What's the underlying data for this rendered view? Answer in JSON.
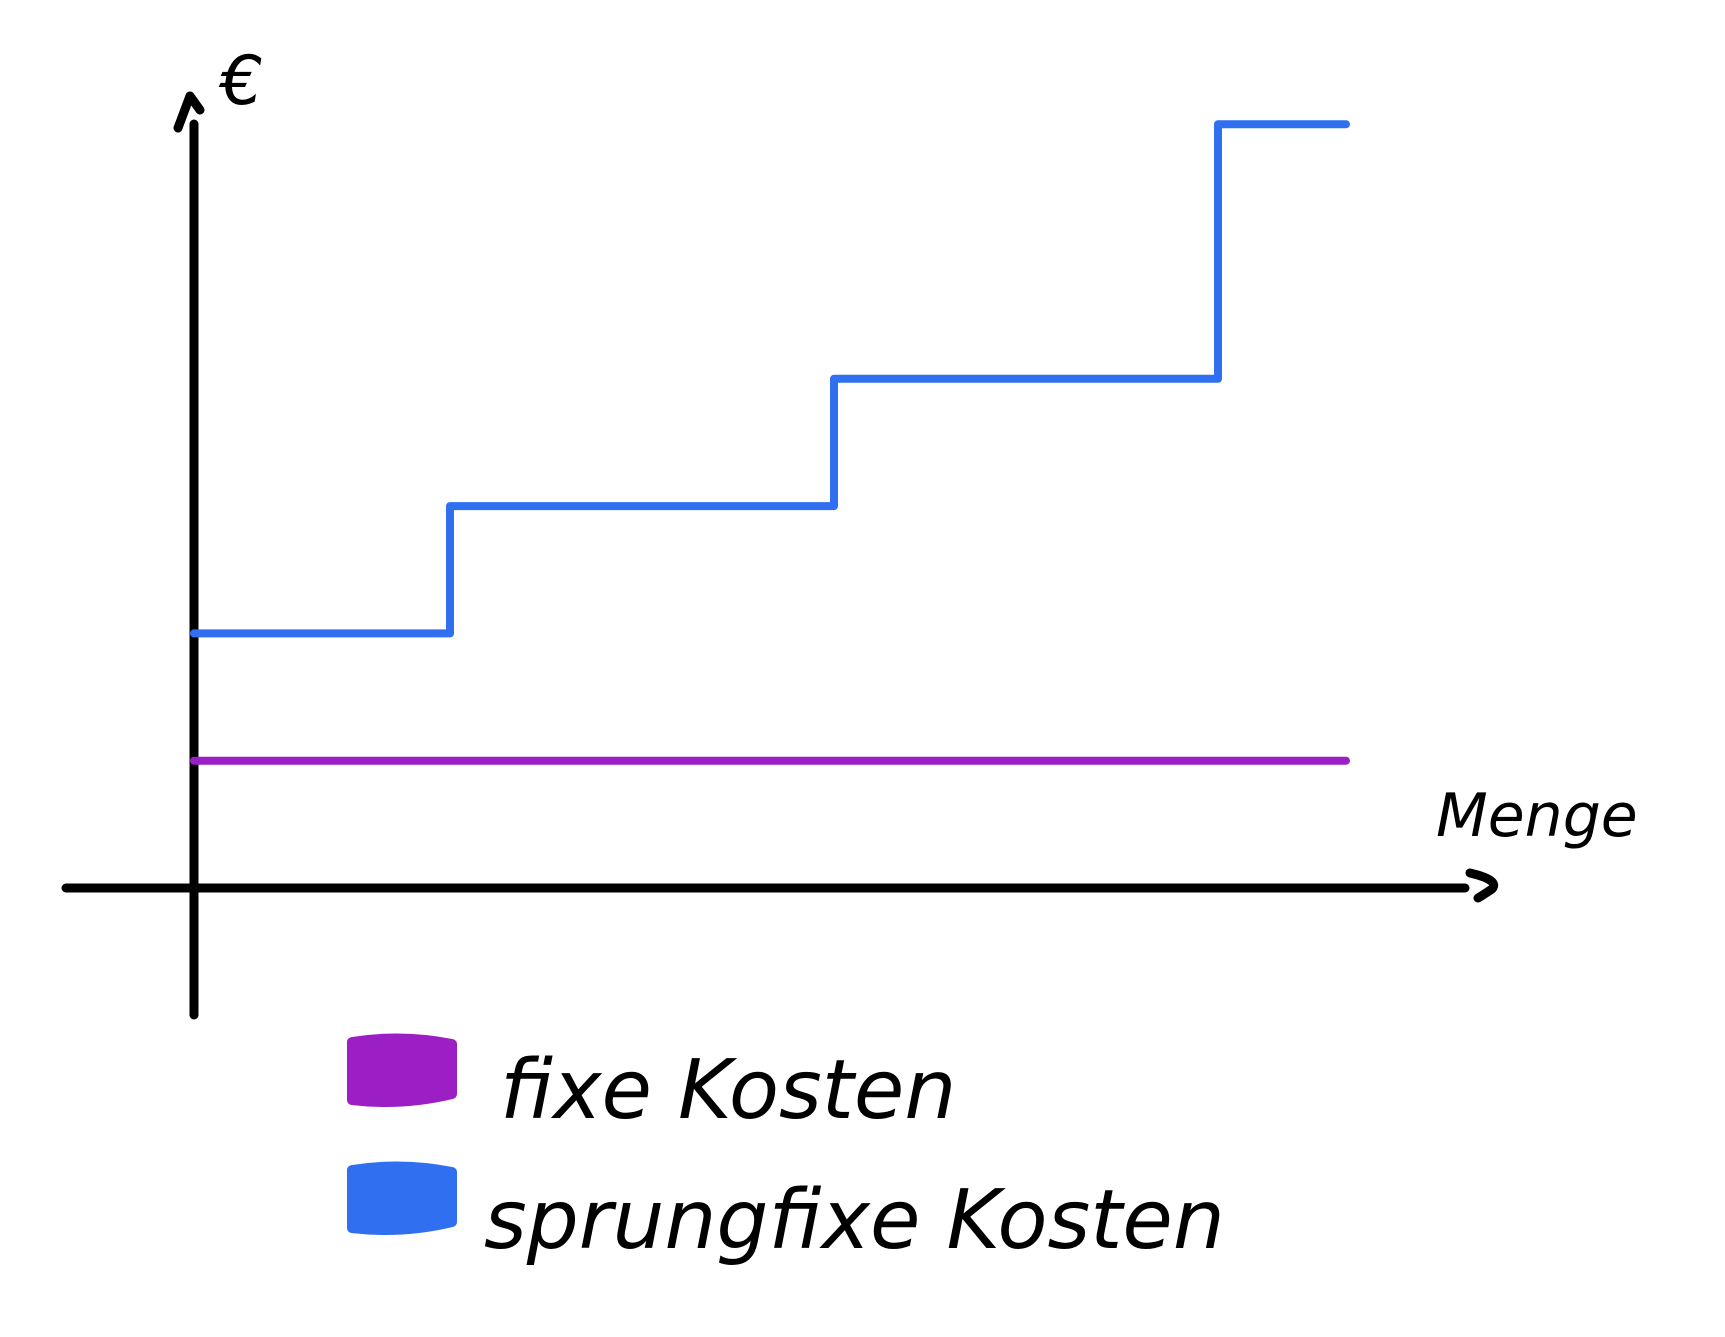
{
  "chart_data": {
    "type": "line",
    "title": "",
    "xlabel": "Menge",
    "ylabel": "€",
    "grid": false,
    "legend_position": "bottom",
    "xlim": [
      0,
      9
    ],
    "ylim": [
      0,
      6
    ],
    "series": [
      {
        "name": "fixe Kosten",
        "color": "#9b1fc5",
        "step": true,
        "x": [
          0,
          9
        ],
        "y": [
          1,
          1
        ]
      },
      {
        "name": "sprungfixe Kosten",
        "color": "#2f6ff0",
        "step": true,
        "x": [
          0,
          2,
          5,
          8,
          9
        ],
        "y": [
          2,
          3,
          4,
          6,
          6
        ]
      }
    ]
  }
}
